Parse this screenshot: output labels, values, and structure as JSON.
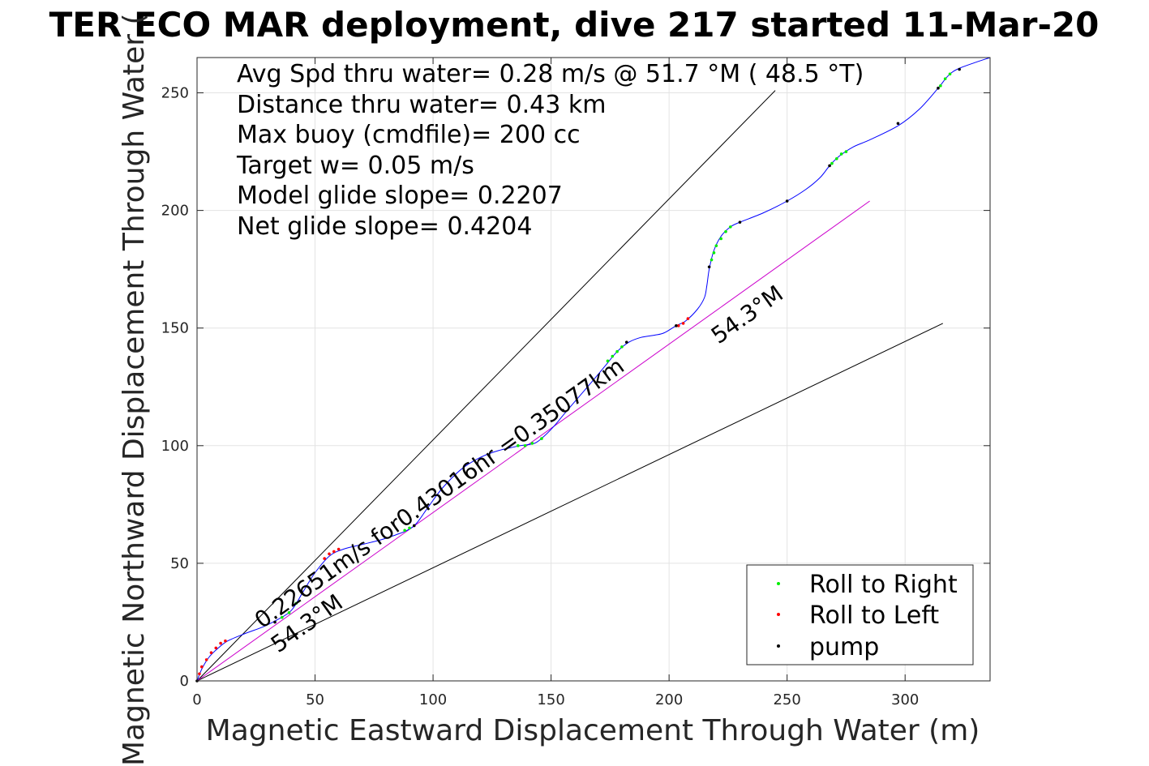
{
  "chart_data": {
    "type": "line",
    "title": "TER ECO MAR deployment, dive 217 started 11-Mar-20",
    "xlabel": "Magnetic Eastward Displacement Through Water (m)",
    "ylabel": "Magnetic Northward Displacement Through Water (",
    "xlim": [
      0,
      336
    ],
    "ylim": [
      0,
      265
    ],
    "xticks": [
      0,
      50,
      100,
      150,
      200,
      250,
      300
    ],
    "yticks": [
      0,
      50,
      100,
      150,
      200,
      250
    ],
    "grid": true,
    "stats_text": [
      "Avg Spd thru water=  0.28 m/s @  51.7 °M ( 48.5 °T)",
      "Distance thru water=  0.43 km",
      "Max buoy (cmdfile)= 200 cc",
      "Target w= 0.05 m/s",
      "Model glide slope= 0.2207",
      "Net glide slope= 0.4204"
    ],
    "annotations": {
      "speed_text": "0.22651m/s for0.43016hr =0.35077km",
      "heading_text_1": "54.3°M",
      "heading_text_2": "54.3°M"
    },
    "reference_lines": [
      {
        "name": "upper-cone",
        "color": "#000000",
        "points": [
          [
            0,
            0
          ],
          [
            245,
            251
          ]
        ]
      },
      {
        "name": "lower-cone",
        "color": "#000000",
        "points": [
          [
            0,
            0
          ],
          [
            316,
            152
          ]
        ]
      },
      {
        "name": "heading",
        "color": "#cc00cc",
        "points": [
          [
            0,
            0
          ],
          [
            285,
            204
          ]
        ]
      }
    ],
    "track": {
      "color": "#0000ff",
      "points": [
        [
          0,
          0
        ],
        [
          2,
          5
        ],
        [
          5,
          10
        ],
        [
          9,
          14
        ],
        [
          13,
          17
        ],
        [
          20,
          20
        ],
        [
          28,
          23
        ],
        [
          34,
          26
        ],
        [
          40,
          30
        ],
        [
          45,
          38
        ],
        [
          50,
          46
        ],
        [
          56,
          53
        ],
        [
          62,
          56
        ],
        [
          70,
          58
        ],
        [
          78,
          60
        ],
        [
          84,
          62
        ],
        [
          89,
          64
        ],
        [
          93,
          67
        ],
        [
          98,
          74
        ],
        [
          104,
          82
        ],
        [
          112,
          90
        ],
        [
          120,
          95
        ],
        [
          128,
          98
        ],
        [
          137,
          100
        ],
        [
          143,
          101
        ],
        [
          147,
          104
        ],
        [
          151,
          108
        ],
        [
          156,
          114
        ],
        [
          162,
          121
        ],
        [
          168,
          128
        ],
        [
          173,
          134
        ],
        [
          178,
          140
        ],
        [
          183,
          144
        ],
        [
          188,
          146
        ],
        [
          194,
          147
        ],
        [
          198,
          148
        ],
        [
          203,
          151
        ],
        [
          207,
          153
        ],
        [
          212,
          158
        ],
        [
          215,
          163
        ],
        [
          216,
          168
        ],
        [
          217,
          175
        ],
        [
          219,
          183
        ],
        [
          222,
          189
        ],
        [
          226,
          193
        ],
        [
          230,
          195
        ],
        [
          240,
          199
        ],
        [
          250,
          204
        ],
        [
          258,
          209
        ],
        [
          264,
          214
        ],
        [
          268,
          219
        ],
        [
          272,
          223
        ],
        [
          278,
          227
        ],
        [
          285,
          230
        ],
        [
          297,
          236
        ],
        [
          306,
          243
        ],
        [
          314,
          252
        ],
        [
          318,
          257
        ],
        [
          322,
          260
        ],
        [
          330,
          263
        ],
        [
          336,
          265
        ]
      ]
    },
    "series": [
      {
        "name": "Roll to Right",
        "color": "#00ee00",
        "points": [
          [
            36,
            27
          ],
          [
            39,
            29
          ],
          [
            42,
            33
          ],
          [
            88,
            64
          ],
          [
            90,
            65
          ],
          [
            136,
            100
          ],
          [
            139,
            100
          ],
          [
            142,
            101
          ],
          [
            146,
            103
          ],
          [
            174,
            136
          ],
          [
            176,
            138
          ],
          [
            178,
            140
          ],
          [
            180,
            142
          ],
          [
            218,
            179
          ],
          [
            219,
            182
          ],
          [
            220,
            185
          ],
          [
            222,
            188
          ],
          [
            224,
            191
          ],
          [
            226,
            193
          ],
          [
            269,
            220
          ],
          [
            271,
            222
          ],
          [
            273,
            224
          ],
          [
            275,
            225
          ],
          [
            315,
            253
          ],
          [
            317,
            256
          ],
          [
            319,
            258
          ]
        ]
      },
      {
        "name": "Roll to Left",
        "color": "#ff0000",
        "points": [
          [
            1,
            3
          ],
          [
            2,
            6
          ],
          [
            4,
            9
          ],
          [
            6,
            12
          ],
          [
            8,
            14
          ],
          [
            10,
            16
          ],
          [
            12,
            17
          ],
          [
            54,
            52
          ],
          [
            56,
            54
          ],
          [
            58,
            55
          ],
          [
            60,
            56
          ],
          [
            204,
            151
          ],
          [
            206,
            152
          ],
          [
            208,
            154
          ]
        ]
      },
      {
        "name": "pump",
        "color": "#000000",
        "points": [
          [
            0,
            0
          ],
          [
            33,
            25
          ],
          [
            92,
            66
          ],
          [
            155,
            115
          ],
          [
            182,
            144
          ],
          [
            203,
            151
          ],
          [
            217,
            176
          ],
          [
            230,
            195
          ],
          [
            250,
            204
          ],
          [
            268,
            219
          ],
          [
            297,
            237
          ],
          [
            314,
            252
          ],
          [
            323,
            260
          ]
        ]
      }
    ]
  }
}
